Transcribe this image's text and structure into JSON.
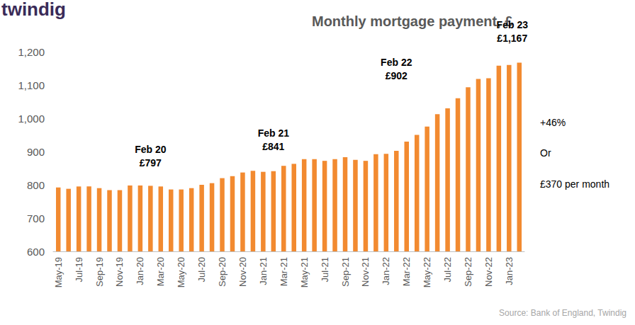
{
  "chart_data": {
    "type": "bar",
    "logo": "twindig",
    "title": "Monthly mortgage payment, £",
    "source": "Source: Bank of England, Twindig",
    "categories": [
      "May-19",
      null,
      "Jul-19",
      null,
      "Sep-19",
      null,
      "Nov-19",
      null,
      "Jan-20",
      null,
      "Mar-20",
      null,
      "May-20",
      null,
      "Jul-20",
      null,
      "Sep-20",
      null,
      "Nov-20",
      null,
      "Jan-21",
      null,
      "Mar-21",
      null,
      "May-21",
      null,
      "Jul-21",
      null,
      "Sep-21",
      null,
      "Nov-21",
      null,
      "Jan-22",
      null,
      "Mar-22",
      null,
      "May-22",
      null,
      "Jul-22",
      null,
      "Sep-22",
      null,
      "Nov-22",
      null,
      "Jan-23",
      null
    ],
    "values": [
      792,
      788,
      795,
      795,
      790,
      784,
      784,
      798,
      798,
      797,
      795,
      786,
      786,
      790,
      800,
      805,
      820,
      826,
      837,
      842,
      839,
      841,
      857,
      863,
      877,
      877,
      872,
      877,
      883,
      875,
      872,
      892,
      893,
      902,
      930,
      950,
      975,
      1012,
      1030,
      1060,
      1093,
      1118,
      1120,
      1158,
      1160,
      1167
    ],
    "color": "#f28a30",
    "ylim": [
      600,
      1200
    ],
    "yticks": [
      600,
      700,
      800,
      900,
      {
        "value": 1000,
        "label": "1,000"
      },
      {
        "value": 1100,
        "label": "1,100"
      },
      {
        "value": 1200,
        "label": "1,200"
      }
    ],
    "grid": false,
    "annotations": [
      {
        "text": [
          "Feb 20",
          "£797"
        ],
        "value": 797
      },
      {
        "text": [
          "Feb 21",
          "£841"
        ],
        "value": 841
      },
      {
        "text": [
          "Feb 22",
          "£902"
        ],
        "value": 902
      },
      {
        "text": [
          "Feb 23",
          "£1,167"
        ],
        "value": 1167
      }
    ],
    "side_note": [
      "+46%",
      "Or",
      "£370 per month"
    ]
  }
}
